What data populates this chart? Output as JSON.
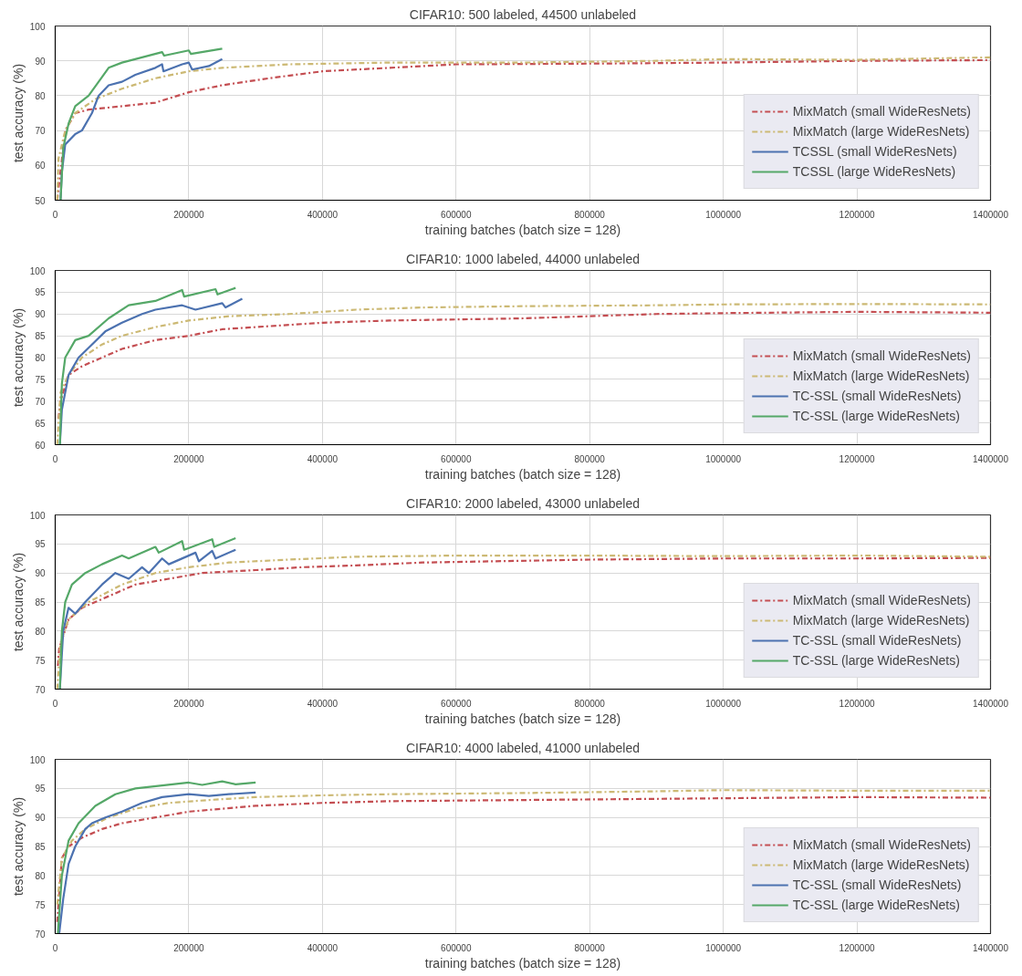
{
  "chart_data": [
    {
      "type": "line",
      "title": "CIFAR10: 500 labeled, 44500 unlabeled",
      "xlabel": "training batches (batch size = 128)",
      "ylabel": "test accuracy (%)",
      "xlim": [
        0,
        1400000
      ],
      "xticks": [
        0,
        200000,
        400000,
        600000,
        800000,
        1000000,
        1200000,
        1400000
      ],
      "ylim": [
        50,
        100
      ],
      "yticks": [
        50,
        60,
        70,
        80,
        90,
        100
      ],
      "grid": true,
      "legend": "bottom right",
      "series": [
        {
          "name": "MixMatch (small WideResNets)",
          "color": "#c44e52",
          "line_style": "dashed",
          "x": [
            3000,
            15000,
            30000,
            50000,
            100000,
            150000,
            200000,
            250000,
            320000,
            400000,
            500000,
            600000,
            800000,
            1000000,
            1200000,
            1400000
          ],
          "values": [
            50,
            70,
            75,
            76,
            77,
            78,
            81,
            83,
            85,
            87,
            88,
            89,
            89.2,
            89.5,
            90,
            90.2
          ]
        },
        {
          "name": "MixMatch (large WideResNets)",
          "color": "#ccb974",
          "line_style": "dashed",
          "x": [
            3000,
            5000,
            15000,
            30000,
            60000,
            100000,
            150000,
            200000,
            250000,
            350000,
            500000,
            700000,
            900000,
            1000000,
            1200000,
            1400000
          ],
          "values": [
            50,
            62,
            70,
            75,
            79,
            82,
            85,
            87,
            88,
            89,
            89.5,
            89.5,
            90,
            90.5,
            90.3,
            91
          ]
        },
        {
          "name": "TCSSL (small WideResNets)",
          "color": "#4c72b0",
          "line_style": "solid",
          "x": [
            8000,
            10000,
            15000,
            30000,
            40000,
            55000,
            65000,
            80000,
            100000,
            120000,
            150000,
            160000,
            162000,
            190000,
            200000,
            205000,
            230000,
            250000
          ],
          "values": [
            50,
            58,
            66,
            69,
            70,
            75,
            80,
            83,
            84,
            86,
            88,
            89,
            87,
            89,
            89.5,
            87.5,
            88.5,
            90.5
          ]
        },
        {
          "name": "TCSSL (large WideResNets)",
          "color": "#55a868",
          "line_style": "solid",
          "x": [
            8000,
            12000,
            20000,
            30000,
            50000,
            65000,
            80000,
            100000,
            130000,
            160000,
            163000,
            200000,
            203000,
            250000
          ],
          "values": [
            50,
            65,
            72,
            77,
            80,
            84,
            88,
            89.5,
            91,
            92.5,
            91.5,
            93,
            92,
            93.5
          ]
        }
      ]
    },
    {
      "type": "line",
      "title": "CIFAR10: 1000 labeled, 44000 unlabeled",
      "xlabel": "training batches (batch size = 128)",
      "ylabel": "test accuracy (%)",
      "xlim": [
        0,
        1400000
      ],
      "xticks": [
        0,
        200000,
        400000,
        600000,
        800000,
        1000000,
        1200000,
        1400000
      ],
      "ylim": [
        60,
        100
      ],
      "yticks": [
        60,
        65,
        70,
        75,
        80,
        85,
        90,
        95,
        100
      ],
      "grid": true,
      "legend": "bottom right",
      "series": [
        {
          "name": "MixMatch (small WideResNets)",
          "color": "#c44e52",
          "line_style": "dashed",
          "x": [
            5000,
            8000,
            20000,
            40000,
            70000,
            100000,
            150000,
            200000,
            250000,
            300000,
            400000,
            500000,
            700000,
            900000,
            1000000,
            1200000,
            1400000
          ],
          "values": [
            66,
            70,
            76,
            78,
            80,
            82,
            84,
            85,
            86.5,
            87,
            88,
            88.5,
            89,
            90,
            90.2,
            90.5,
            90.3
          ]
        },
        {
          "name": "MixMatch (large WideResNets)",
          "color": "#ccb974",
          "line_style": "dashed",
          "x": [
            3000,
            8000,
            20000,
            40000,
            70000,
            100000,
            150000,
            200000,
            260000,
            350000,
            450000,
            550000,
            700000,
            900000,
            1000000,
            1200000,
            1400000
          ],
          "values": [
            60,
            72,
            76,
            80,
            83,
            85,
            87,
            88.5,
            89.5,
            90,
            91,
            91.5,
            91.8,
            92,
            92.2,
            92.3,
            92.2
          ]
        },
        {
          "name": "TC-SSL (small WideResNets)",
          "color": "#4c72b0",
          "line_style": "solid",
          "x": [
            7000,
            10000,
            20000,
            35000,
            55000,
            75000,
            100000,
            130000,
            150000,
            190000,
            210000,
            250000,
            255000,
            280000
          ],
          "values": [
            60,
            68,
            76,
            80,
            83,
            86,
            88,
            90,
            91,
            92,
            91,
            92.5,
            91.5,
            93.5
          ]
        },
        {
          "name": "TC-SSL (large WideResNets)",
          "color": "#55a868",
          "line_style": "solid",
          "x": [
            7000,
            10000,
            15000,
            30000,
            50000,
            80000,
            110000,
            150000,
            190000,
            193000,
            240000,
            243000,
            270000
          ],
          "values": [
            60,
            74,
            80,
            84,
            85,
            89,
            92,
            93,
            95.5,
            94,
            95.7,
            94.5,
            96
          ]
        }
      ]
    },
    {
      "type": "line",
      "title": "CIFAR10: 2000 labeled, 43000 unlabeled",
      "xlabel": "training batches (batch size = 128)",
      "ylabel": "test accuracy (%)",
      "xlim": [
        0,
        1400000
      ],
      "xticks": [
        0,
        200000,
        400000,
        600000,
        800000,
        1000000,
        1200000,
        1400000
      ],
      "ylim": [
        70,
        100
      ],
      "yticks": [
        70,
        75,
        80,
        85,
        90,
        95,
        100
      ],
      "grid": true,
      "legend": "bottom right",
      "series": [
        {
          "name": "MixMatch (small WideResNets)",
          "color": "#c44e52",
          "line_style": "dashed",
          "x": [
            4000,
            6000,
            20000,
            40000,
            80000,
            120000,
            170000,
            220000,
            300000,
            370000,
            450000,
            550000,
            650000,
            800000,
            1000000,
            1200000,
            1400000
          ],
          "values": [
            74,
            77,
            82,
            84,
            86,
            88,
            89,
            90,
            90.5,
            91,
            91.3,
            91.8,
            92,
            92.3,
            92.5,
            92.5,
            92.6
          ]
        },
        {
          "name": "MixMatch (large WideResNets)",
          "color": "#ccb974",
          "line_style": "dashed",
          "x": [
            3000,
            8000,
            20000,
            50000,
            100000,
            150000,
            200000,
            260000,
            350000,
            450000,
            600000,
            800000,
            1000000,
            1200000,
            1400000
          ],
          "values": [
            70,
            78,
            82,
            85,
            88,
            90,
            91,
            91.8,
            92.3,
            92.8,
            93,
            93,
            92.9,
            93,
            92.8
          ]
        },
        {
          "name": "TC-SSL (small WideResNets)",
          "color": "#4c72b0",
          "line_style": "solid",
          "x": [
            7000,
            12000,
            20000,
            30000,
            45000,
            70000,
            90000,
            110000,
            130000,
            140000,
            160000,
            170000,
            210000,
            215000,
            235000,
            240000,
            270000
          ],
          "values": [
            70,
            80,
            84,
            83,
            85,
            88,
            90,
            89,
            91,
            90,
            92.5,
            91.5,
            93.5,
            92,
            93.8,
            92.5,
            94
          ]
        },
        {
          "name": "TC-SSL (large WideResNets)",
          "color": "#55a868",
          "line_style": "solid",
          "x": [
            7000,
            10000,
            15000,
            25000,
            45000,
            70000,
            100000,
            110000,
            150000,
            155000,
            190000,
            193000,
            235000,
            238000,
            270000
          ],
          "values": [
            70,
            80,
            85,
            88,
            90,
            91.5,
            93,
            92.5,
            94.5,
            93.5,
            95.5,
            94,
            95.8,
            94.5,
            96
          ]
        }
      ]
    },
    {
      "type": "line",
      "title": "CIFAR10: 4000 labeled, 41000 unlabeled",
      "xlabel": "training batches (batch size = 128)",
      "ylabel": "test accuracy (%)",
      "xlim": [
        0,
        1400000
      ],
      "xticks": [
        0,
        200000,
        400000,
        600000,
        800000,
        1000000,
        1200000,
        1400000
      ],
      "ylim": [
        70,
        100
      ],
      "yticks": [
        70,
        75,
        80,
        85,
        90,
        95,
        100
      ],
      "grid": true,
      "legend": "bottom right",
      "series": [
        {
          "name": "MixMatch (small WideResNets)",
          "color": "#c44e52",
          "line_style": "dashed",
          "x": [
            3000,
            10000,
            20000,
            40000,
            70000,
            100000,
            150000,
            200000,
            250000,
            300000,
            400000,
            500000,
            700000,
            900000,
            1000000,
            1200000,
            1400000
          ],
          "values": [
            72,
            83,
            85,
            86.5,
            88,
            89,
            90,
            91,
            91.5,
            92,
            92.5,
            92.8,
            93,
            93.2,
            93.3,
            93.5,
            93.4
          ]
        },
        {
          "name": "MixMatch (large WideResNets)",
          "color": "#ccb974",
          "line_style": "dashed",
          "x": [
            3000,
            10000,
            25000,
            45000,
            80000,
            120000,
            170000,
            230000,
            300000,
            400000,
            500000,
            700000,
            900000,
            1000000,
            1200000,
            1400000
          ],
          "values": [
            75,
            83,
            86,
            88,
            90,
            91.5,
            92.5,
            93,
            93.5,
            93.8,
            94,
            94.2,
            94.5,
            94.7,
            94.6,
            94.6
          ]
        },
        {
          "name": "TC-SSL (small WideResNets)",
          "color": "#4c72b0",
          "line_style": "solid",
          "x": [
            6000,
            12000,
            20000,
            30000,
            45000,
            55000,
            75000,
            100000,
            130000,
            160000,
            200000,
            230000,
            260000,
            300000
          ],
          "values": [
            70,
            76,
            82,
            85,
            88,
            89,
            90,
            91,
            92.5,
            93.5,
            94,
            93.7,
            94,
            94.3
          ]
        },
        {
          "name": "TC-SSL (large WideResNets)",
          "color": "#55a868",
          "line_style": "solid",
          "x": [
            4000,
            10000,
            20000,
            35000,
            60000,
            90000,
            120000,
            160000,
            200000,
            220000,
            250000,
            270000,
            300000
          ],
          "values": [
            70,
            80,
            86,
            89,
            92,
            94,
            95,
            95.5,
            96,
            95.6,
            96.2,
            95.7,
            96
          ]
        }
      ]
    }
  ]
}
